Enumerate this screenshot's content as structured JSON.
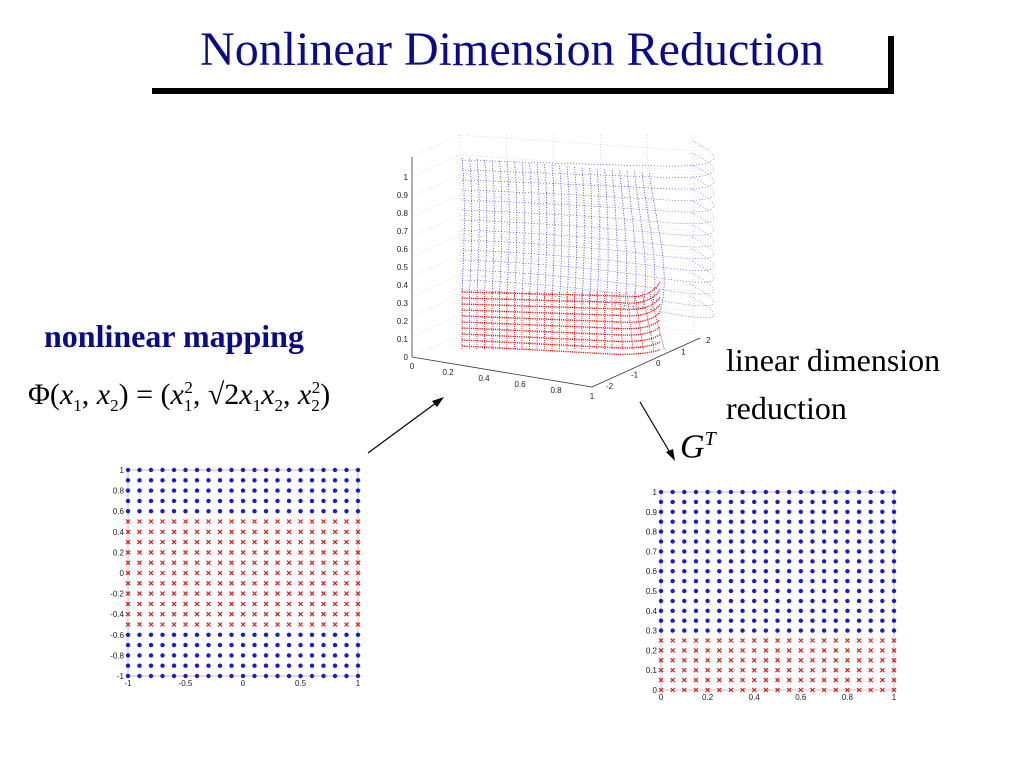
{
  "slide": {
    "title": "Nonlinear Dimension Reduction",
    "nonlinear_label": "nonlinear mapping",
    "linear_label_line1": "linear dimension",
    "linear_label_line2": "reduction",
    "projection_symbol": "G",
    "projection_superscript": "T"
  },
  "colors": {
    "title": "#0a0a8c",
    "class_a": "#1a1adc",
    "class_b": "#e01a1a"
  },
  "chart_data": [
    {
      "type": "scatter",
      "x_ticks": [
        "-1",
        "-0.5",
        "0",
        "0.5",
        "1"
      ],
      "y_ticks": [
        "1",
        "0.8",
        "0.6",
        "0.4",
        "0.2",
        "0",
        "-0.2",
        "-0.4",
        "-0.6",
        "-0.8",
        "-1"
      ],
      "xlim": [
        -1,
        1
      ],
      "ylim": [
        -1,
        1
      ],
      "grid_n": 21,
      "class_b_band": [
        -0.5,
        0.5
      ]
    },
    {
      "type": "scatter",
      "x_ticks": [
        "0",
        "0.2",
        "0.4",
        "0.6",
        "0.8",
        "1"
      ],
      "y_ticks": [
        "1",
        "0.9",
        "0.8",
        "0.7",
        "0.6",
        "0.5",
        "0.4",
        "0.3",
        "0.2",
        "0.1",
        "0"
      ],
      "xlim": [
        0,
        1
      ],
      "ylim": [
        0,
        1
      ],
      "grid_n": 21,
      "class_b_band": [
        0,
        0.25
      ]
    },
    {
      "type": "scatter3d",
      "z_ticks": [
        "1",
        "0.9",
        "0.8",
        "0.7",
        "0.6",
        "0.5",
        "0.4",
        "0.3",
        "0.2",
        "0.1",
        "0"
      ],
      "x_ticks": [
        "0",
        "0.2",
        "0.4",
        "0.6",
        "0.8",
        "1"
      ],
      "y_ticks": [
        "2",
        "1",
        "0",
        "-1",
        "-2"
      ]
    }
  ]
}
